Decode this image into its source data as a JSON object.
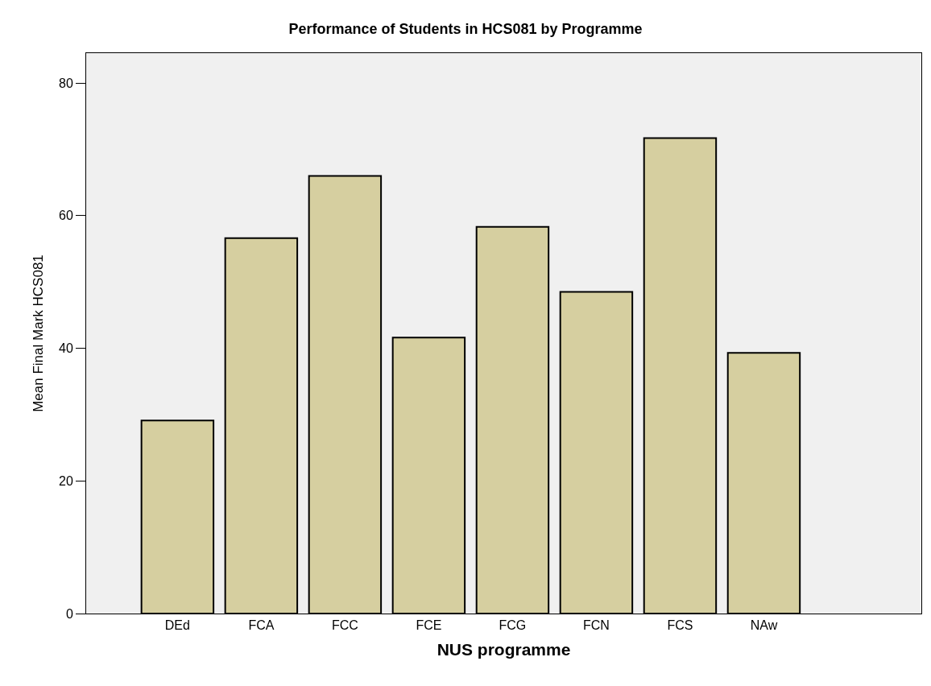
{
  "chart_data": {
    "type": "bar",
    "title": "Performance of Students in HCS081 by Programme",
    "xlabel": "NUS programme",
    "ylabel": "Mean Final Mark HCS081",
    "categories": [
      "DEd",
      "FCA",
      "FCC",
      "FCE",
      "FCG",
      "FCN",
      "FCS",
      "NAw"
    ],
    "values": [
      29.1,
      56.6,
      66.0,
      41.6,
      58.3,
      48.5,
      71.7,
      39.3
    ],
    "color": "#d6cfa0",
    "ylim": [
      0,
      84.5
    ],
    "yticks": [
      0,
      20,
      40,
      60,
      80
    ],
    "grid": false,
    "legend": false
  }
}
